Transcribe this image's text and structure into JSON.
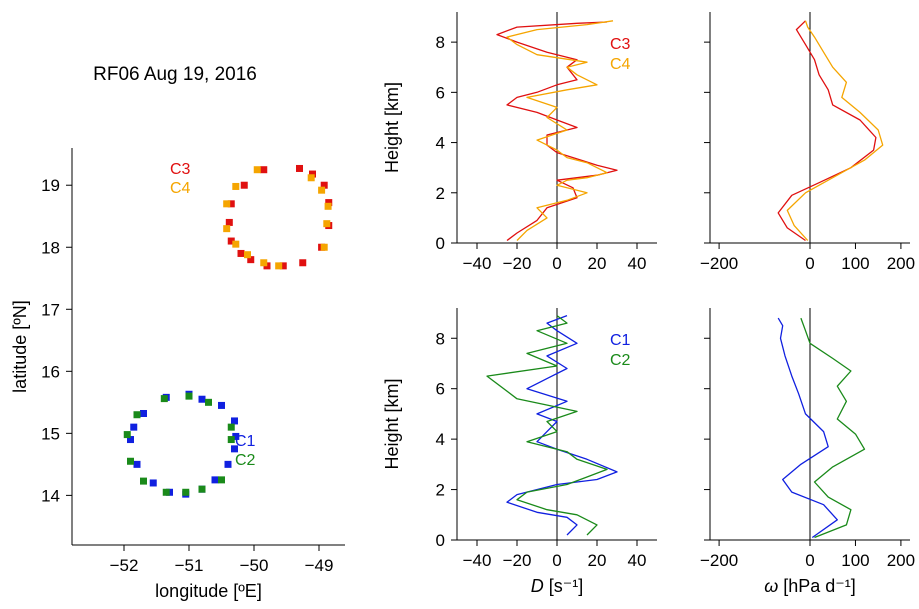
{
  "figure_title": "RF06 Aug 19, 2016",
  "colors": {
    "C1": "#1020e0",
    "C2": "#1a8a1a",
    "C3": "#e01010",
    "C4": "#f5a500"
  },
  "chart_data": [
    {
      "id": "map",
      "type": "scatter",
      "title": "RF06 Aug 19, 2016",
      "xlabel": "longitude [ºE]",
      "ylabel": "latitude [ºN]",
      "xlim": [
        -52.8,
        -48.6
      ],
      "ylim": [
        13.2,
        19.6
      ],
      "xticks": [
        -52,
        -51,
        -50,
        -49
      ],
      "xtick_labels": [
        "−52",
        "−51",
        "−50",
        "−49"
      ],
      "yticks": [
        14,
        15,
        16,
        17,
        18,
        19
      ],
      "ytick_labels": [
        "14",
        "15",
        "16",
        "17",
        "18",
        "19"
      ],
      "legend_groups": [
        {
          "position": "upper",
          "names": [
            "C3",
            "C4"
          ]
        },
        {
          "position": "lower",
          "names": [
            "C1",
            "C2"
          ]
        }
      ],
      "series": [
        {
          "name": "C3",
          "points": [
            [
              -49.3,
              19.27
            ],
            [
              -49.1,
              19.18
            ],
            [
              -48.92,
              19.0
            ],
            [
              -48.85,
              18.72
            ],
            [
              -48.85,
              18.35
            ],
            [
              -48.96,
              18.0
            ],
            [
              -49.25,
              17.75
            ],
            [
              -49.55,
              17.7
            ],
            [
              -49.8,
              17.7
            ],
            [
              -50.05,
              17.8
            ],
            [
              -50.2,
              17.9
            ],
            [
              -50.35,
              18.1
            ],
            [
              -50.38,
              18.4
            ],
            [
              -50.35,
              18.7
            ],
            [
              -50.15,
              19.0
            ],
            [
              -49.85,
              19.25
            ]
          ]
        },
        {
          "name": "C4",
          "points": [
            [
              -49.12,
              19.12
            ],
            [
              -48.96,
              18.92
            ],
            [
              -48.86,
              18.66
            ],
            [
              -48.88,
              18.38
            ],
            [
              -48.92,
              18.0
            ],
            [
              -49.62,
              17.7
            ],
            [
              -49.85,
              17.75
            ],
            [
              -50.1,
              17.88
            ],
            [
              -50.28,
              18.05
            ],
            [
              -50.42,
              18.3
            ],
            [
              -50.42,
              18.7
            ],
            [
              -50.28,
              18.98
            ],
            [
              -49.95,
              19.25
            ]
          ]
        },
        {
          "name": "C1",
          "points": [
            [
              -51.0,
              15.63
            ],
            [
              -50.8,
              15.55
            ],
            [
              -50.5,
              15.45
            ],
            [
              -50.3,
              15.2
            ],
            [
              -50.28,
              14.95
            ],
            [
              -50.3,
              14.75
            ],
            [
              -50.4,
              14.5
            ],
            [
              -50.6,
              14.25
            ],
            [
              -50.8,
              14.1
            ],
            [
              -51.05,
              14.02
            ],
            [
              -51.3,
              14.05
            ],
            [
              -51.55,
              14.2
            ],
            [
              -51.8,
              14.5
            ],
            [
              -51.9,
              14.9
            ],
            [
              -51.85,
              15.1
            ],
            [
              -51.7,
              15.32
            ],
            [
              -51.35,
              15.58
            ]
          ]
        },
        {
          "name": "C2",
          "points": [
            [
              -51.0,
              15.6
            ],
            [
              -50.7,
              15.5
            ],
            [
              -50.35,
              15.1
            ],
            [
              -50.35,
              14.9
            ],
            [
              -50.5,
              14.25
            ],
            [
              -50.8,
              14.1
            ],
            [
              -51.05,
              14.05
            ],
            [
              -51.35,
              14.05
            ],
            [
              -51.7,
              14.23
            ],
            [
              -51.9,
              14.55
            ],
            [
              -51.95,
              14.98
            ],
            [
              -51.8,
              15.3
            ],
            [
              -51.38,
              15.56
            ]
          ]
        }
      ]
    },
    {
      "id": "div-top",
      "type": "line",
      "orientation": "vertical-profile",
      "xlabel": "",
      "ylabel": "Height [km]",
      "xlim": [
        -50,
        50
      ],
      "ylim": [
        0,
        9.2
      ],
      "xticks": [
        -40,
        -20,
        0,
        20,
        40
      ],
      "xtick_labels": [
        "−40",
        "−20",
        "0",
        "20",
        "40"
      ],
      "yticks": [
        0,
        2,
        4,
        6,
        8
      ],
      "ytick_labels": [
        "0",
        "2",
        "4",
        "6",
        "8"
      ],
      "zero_line": true,
      "legend": {
        "position": "top-right",
        "names": [
          "C3",
          "C4"
        ]
      },
      "series": [
        {
          "name": "C3",
          "points": [
            [
              -25,
              0.1
            ],
            [
              -20,
              0.4
            ],
            [
              -10,
              0.9
            ],
            [
              -5,
              1.4
            ],
            [
              10,
              1.8
            ],
            [
              8,
              2.2
            ],
            [
              0,
              2.5
            ],
            [
              10,
              2.6
            ],
            [
              20,
              2.7
            ],
            [
              30,
              2.9
            ],
            [
              20,
              3.1
            ],
            [
              12,
              3.3
            ],
            [
              0,
              3.6
            ],
            [
              -5,
              3.9
            ],
            [
              -5,
              4.3
            ],
            [
              10,
              4.6
            ],
            [
              0,
              4.9
            ],
            [
              -10,
              5.2
            ],
            [
              -25,
              5.5
            ],
            [
              -20,
              5.8
            ],
            [
              -10,
              6.0
            ],
            [
              0,
              6.3
            ],
            [
              10,
              6.5
            ],
            [
              5,
              7.0
            ],
            [
              10,
              7.3
            ],
            [
              -5,
              7.6
            ],
            [
              -20,
              8.0
            ],
            [
              -30,
              8.3
            ],
            [
              -20,
              8.6
            ],
            [
              10,
              8.75
            ],
            [
              25,
              8.8
            ]
          ]
        },
        {
          "name": "C4",
          "points": [
            [
              -20,
              0.1
            ],
            [
              -15,
              0.5
            ],
            [
              -5,
              1.0
            ],
            [
              -10,
              1.4
            ],
            [
              5,
              1.7
            ],
            [
              15,
              2.0
            ],
            [
              0,
              2.3
            ],
            [
              5,
              2.5
            ],
            [
              15,
              2.6
            ],
            [
              25,
              2.8
            ],
            [
              15,
              3.2
            ],
            [
              5,
              3.4
            ],
            [
              0,
              3.7
            ],
            [
              -10,
              4.1
            ],
            [
              5,
              4.5
            ],
            [
              -5,
              5.0
            ],
            [
              0,
              5.4
            ],
            [
              -15,
              5.8
            ],
            [
              5,
              6.1
            ],
            [
              20,
              6.3
            ],
            [
              10,
              6.7
            ],
            [
              5,
              7.0
            ],
            [
              15,
              7.2
            ],
            [
              -10,
              7.5
            ],
            [
              -20,
              7.9
            ],
            [
              -25,
              8.2
            ],
            [
              -10,
              8.5
            ],
            [
              15,
              8.7
            ],
            [
              28,
              8.85
            ]
          ]
        }
      ]
    },
    {
      "id": "omega-top",
      "type": "line",
      "orientation": "vertical-profile",
      "xlabel": "",
      "ylabel": "",
      "xlim": [
        -220,
        220
      ],
      "ylim": [
        0,
        9.2
      ],
      "xticks": [
        -200,
        0,
        100,
        200
      ],
      "xtick_labels": [
        "−200",
        "0",
        "100",
        "200"
      ],
      "yticks": [
        0,
        2,
        4,
        6,
        8
      ],
      "zero_line": true,
      "series": [
        {
          "name": "C3",
          "points": [
            [
              -10,
              0.1
            ],
            [
              -50,
              0.6
            ],
            [
              -70,
              1.2
            ],
            [
              -40,
              1.9
            ],
            [
              20,
              2.4
            ],
            [
              90,
              3.0
            ],
            [
              140,
              3.7
            ],
            [
              145,
              4.2
            ],
            [
              110,
              4.9
            ],
            [
              50,
              5.5
            ],
            [
              40,
              6.1
            ],
            [
              20,
              6.7
            ],
            [
              10,
              7.3
            ],
            [
              -10,
              7.9
            ],
            [
              -30,
              8.5
            ],
            [
              -10,
              8.85
            ]
          ]
        },
        {
          "name": "C4",
          "points": [
            [
              -5,
              0.1
            ],
            [
              -35,
              0.7
            ],
            [
              -50,
              1.3
            ],
            [
              -10,
              2.0
            ],
            [
              50,
              2.6
            ],
            [
              120,
              3.3
            ],
            [
              160,
              3.9
            ],
            [
              150,
              4.5
            ],
            [
              110,
              5.2
            ],
            [
              70,
              5.8
            ],
            [
              80,
              6.4
            ],
            [
              50,
              7.0
            ],
            [
              30,
              7.6
            ],
            [
              10,
              8.2
            ],
            [
              -5,
              8.6
            ],
            [
              -10,
              8.85
            ]
          ]
        }
      ]
    },
    {
      "id": "div-bottom",
      "type": "line",
      "orientation": "vertical-profile",
      "xlabel": "D [s⁻¹]",
      "ylabel": "Height [km]",
      "xlim": [
        -50,
        50
      ],
      "ylim": [
        0,
        9.2
      ],
      "xticks": [
        -40,
        -20,
        0,
        20,
        40
      ],
      "xtick_labels": [
        "−40",
        "−20",
        "0",
        "20",
        "40"
      ],
      "yticks": [
        0,
        2,
        4,
        6,
        8
      ],
      "ytick_labels": [
        "0",
        "2",
        "4",
        "6",
        "8"
      ],
      "zero_line": true,
      "legend": {
        "position": "top-right",
        "names": [
          "C1",
          "C2"
        ]
      },
      "series": [
        {
          "name": "C1",
          "points": [
            [
              5,
              0.2
            ],
            [
              10,
              0.6
            ],
            [
              5,
              0.9
            ],
            [
              -10,
              1.1
            ],
            [
              -25,
              1.5
            ],
            [
              -20,
              1.8
            ],
            [
              0,
              2.2
            ],
            [
              20,
              2.4
            ],
            [
              30,
              2.7
            ],
            [
              15,
              3.2
            ],
            [
              0,
              3.6
            ],
            [
              -10,
              3.9
            ],
            [
              -5,
              4.3
            ],
            [
              0,
              4.7
            ],
            [
              -10,
              5.0
            ],
            [
              5,
              5.5
            ],
            [
              -15,
              6.0
            ],
            [
              -5,
              6.4
            ],
            [
              5,
              6.8
            ],
            [
              -5,
              7.3
            ],
            [
              10,
              7.8
            ],
            [
              0,
              8.3
            ],
            [
              -5,
              8.6
            ],
            [
              5,
              8.9
            ]
          ]
        },
        {
          "name": "C2",
          "points": [
            [
              15,
              0.2
            ],
            [
              20,
              0.6
            ],
            [
              10,
              1.0
            ],
            [
              -5,
              1.2
            ],
            [
              -20,
              1.6
            ],
            [
              -15,
              1.9
            ],
            [
              5,
              2.2
            ],
            [
              15,
              2.5
            ],
            [
              25,
              2.8
            ],
            [
              10,
              3.2
            ],
            [
              5,
              3.5
            ],
            [
              -15,
              3.9
            ],
            [
              0,
              4.3
            ],
            [
              -5,
              4.7
            ],
            [
              10,
              5.1
            ],
            [
              -20,
              5.6
            ],
            [
              -35,
              6.5
            ],
            [
              0,
              6.9
            ],
            [
              -15,
              7.4
            ],
            [
              5,
              7.8
            ],
            [
              -10,
              8.3
            ],
            [
              5,
              8.6
            ],
            [
              0,
              8.9
            ]
          ]
        }
      ]
    },
    {
      "id": "omega-bottom",
      "type": "line",
      "orientation": "vertical-profile",
      "xlabel": "ω [hPa d⁻¹]",
      "ylabel": "",
      "xlim": [
        -220,
        220
      ],
      "ylim": [
        0,
        9.2
      ],
      "xticks": [
        -200,
        0,
        100,
        200
      ],
      "xtick_labels": [
        "−200",
        "0",
        "100",
        "200"
      ],
      "yticks": [
        0,
        2,
        4,
        6,
        8
      ],
      "zero_line": true,
      "series": [
        {
          "name": "C1",
          "points": [
            [
              5,
              0.1
            ],
            [
              60,
              0.8
            ],
            [
              30,
              1.4
            ],
            [
              -40,
              1.9
            ],
            [
              -60,
              2.4
            ],
            [
              -20,
              3.0
            ],
            [
              40,
              3.7
            ],
            [
              30,
              4.3
            ],
            [
              -10,
              5.0
            ],
            [
              -25,
              5.8
            ],
            [
              -40,
              6.5
            ],
            [
              -55,
              7.3
            ],
            [
              -65,
              8.0
            ],
            [
              -60,
              8.5
            ],
            [
              -70,
              8.8
            ]
          ]
        },
        {
          "name": "C2",
          "points": [
            [
              10,
              0.1
            ],
            [
              80,
              0.6
            ],
            [
              90,
              1.2
            ],
            [
              40,
              1.7
            ],
            [
              10,
              2.3
            ],
            [
              50,
              2.9
            ],
            [
              120,
              3.6
            ],
            [
              100,
              4.2
            ],
            [
              60,
              4.8
            ],
            [
              80,
              5.5
            ],
            [
              60,
              6.1
            ],
            [
              90,
              6.7
            ],
            [
              50,
              7.2
            ],
            [
              0,
              7.8
            ],
            [
              -10,
              8.3
            ],
            [
              -20,
              8.8
            ]
          ]
        }
      ]
    }
  ]
}
